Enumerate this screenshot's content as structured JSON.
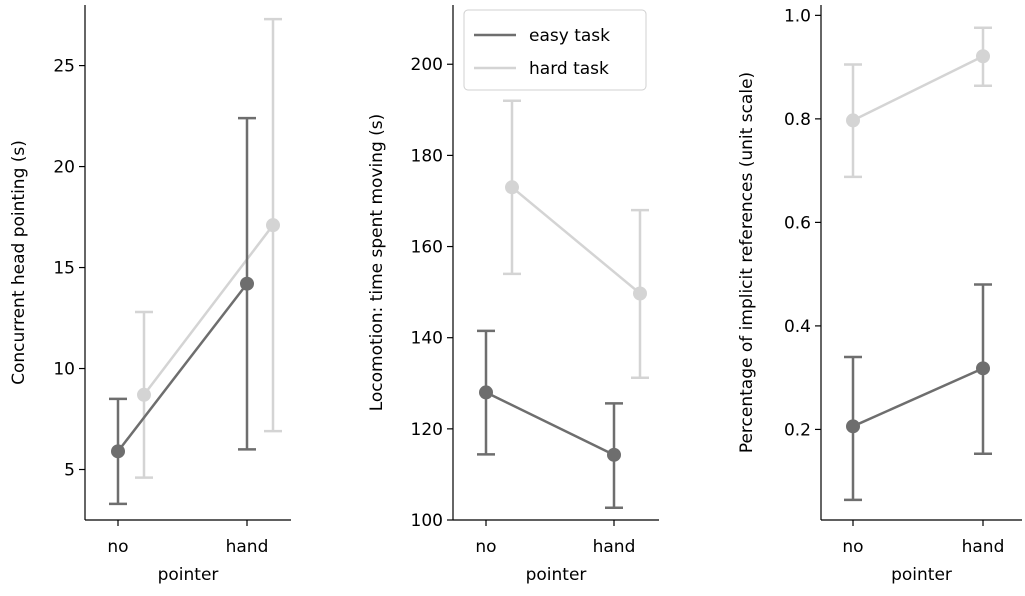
{
  "chart_data": [
    {
      "type": "line",
      "xlabel": "pointer",
      "ylabel": "Concurrent head pointing (s)",
      "categories": [
        "no",
        "hand"
      ],
      "ylim": [
        2.5,
        28
      ],
      "yticks": [
        5,
        10,
        15,
        20,
        25
      ],
      "legend": null,
      "series": [
        {
          "name": "easy task",
          "color": "#6e6e6e",
          "values": [
            5.9,
            14.2
          ],
          "err_low": [
            3.3,
            6.0
          ],
          "err_high": [
            8.5,
            22.4
          ]
        },
        {
          "name": "hard task",
          "color": "#d4d4d4",
          "values": [
            8.7,
            17.1
          ],
          "err_low": [
            4.6,
            6.9
          ],
          "err_high": [
            12.8,
            27.3
          ]
        }
      ]
    },
    {
      "type": "line",
      "xlabel": "pointer",
      "ylabel": "Locomotion: time spent moving (s)",
      "categories": [
        "no",
        "hand"
      ],
      "ylim": [
        100,
        213
      ],
      "yticks": [
        100,
        120,
        140,
        160,
        180,
        200
      ],
      "legend": "top-left",
      "series": [
        {
          "name": "easy task",
          "color": "#6e6e6e",
          "values": [
            128,
            114.3
          ],
          "err_low": [
            114.4,
            102.7
          ],
          "err_high": [
            141.5,
            125.6
          ]
        },
        {
          "name": "hard task",
          "color": "#d4d4d4",
          "values": [
            173,
            149.7
          ],
          "err_low": [
            154,
            131.2
          ],
          "err_high": [
            192,
            168
          ]
        }
      ]
    },
    {
      "type": "line",
      "xlabel": "pointer",
      "ylabel": "Percentage of implicit references (unit scale)",
      "categories": [
        "no",
        "hand"
      ],
      "ylim": [
        0.025,
        1.02
      ],
      "yticks": [
        0.2,
        0.4,
        0.6,
        0.8,
        1.0
      ],
      "legend": null,
      "series": [
        {
          "name": "easy task",
          "color": "#6e6e6e",
          "values": [
            0.206,
            0.318
          ],
          "err_low": [
            0.064,
            0.153
          ],
          "err_high": [
            0.34,
            0.48
          ]
        },
        {
          "name": "hard task",
          "color": "#d4d4d4",
          "values": [
            0.797,
            0.921
          ],
          "err_low": [
            0.688,
            0.864
          ],
          "err_high": [
            0.905,
            0.976
          ]
        }
      ]
    }
  ]
}
